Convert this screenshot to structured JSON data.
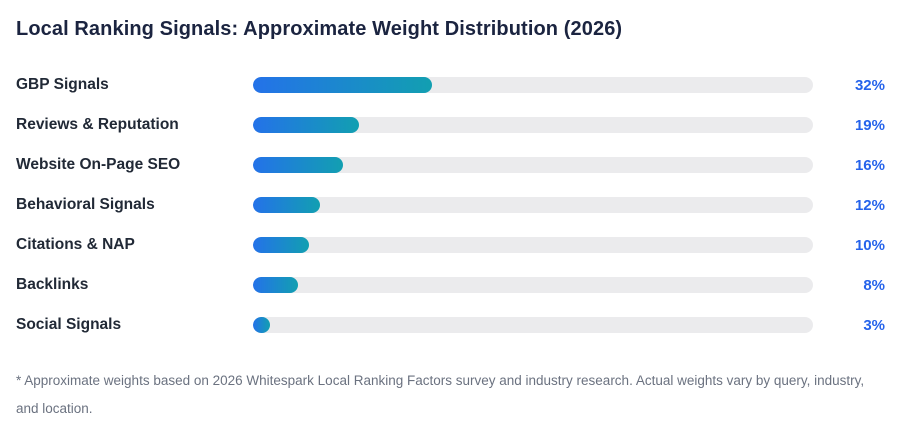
{
  "chart_data": {
    "type": "bar",
    "orientation": "horizontal",
    "title": "Local Ranking Signals: Approximate Weight Distribution (2026)",
    "categories": [
      "GBP Signals",
      "Reviews & Reputation",
      "Website On-Page SEO",
      "Behavioral Signals",
      "Citations & NAP",
      "Backlinks",
      "Social Signals"
    ],
    "values": [
      32,
      19,
      16,
      12,
      10,
      8,
      3
    ],
    "value_labels": [
      "32%",
      "19%",
      "16%",
      "12%",
      "10%",
      "8%",
      "3%"
    ],
    "xlim": [
      0,
      100
    ],
    "grid": false,
    "legend": false,
    "colors": {
      "bar_gradient_start": "#2472e9",
      "bar_gradient_end": "#129fb1",
      "bar_track": "#ebebed",
      "value_text": "#2563eb",
      "title_text": "#1b2440",
      "label_text": "#212936",
      "footnote_text": "#6b7280"
    },
    "rows": [
      {
        "label": "GBP Signals",
        "value": 32,
        "pct": "32%"
      },
      {
        "label": "Reviews & Reputation",
        "value": 19,
        "pct": "19%"
      },
      {
        "label": "Website On-Page SEO",
        "value": 16,
        "pct": "16%"
      },
      {
        "label": "Behavioral Signals",
        "value": 12,
        "pct": "12%"
      },
      {
        "label": "Citations & NAP",
        "value": 10,
        "pct": "10%"
      },
      {
        "label": "Backlinks",
        "value": 8,
        "pct": "8%"
      },
      {
        "label": "Social Signals",
        "value": 3,
        "pct": "3%"
      }
    ],
    "footnote": "* Approximate weights based on 2026 Whitespark Local Ranking Factors survey and industry research. Actual weights vary by query, industry, and location."
  }
}
